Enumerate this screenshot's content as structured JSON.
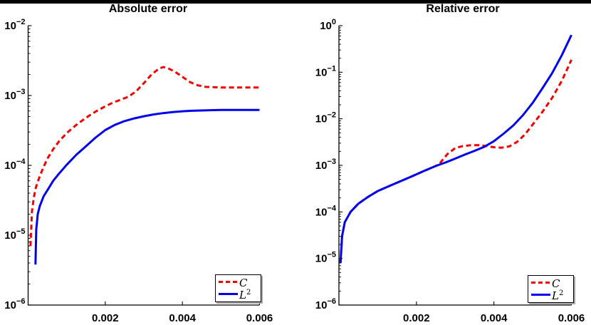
{
  "figure": {
    "background": "#ffffff",
    "top_border_color": "#000000"
  },
  "chart_data": [
    {
      "type": "line",
      "title": "Absolute error",
      "xlabel": "",
      "ylabel": "",
      "x_axis": {
        "min": 0,
        "max": 0.006,
        "tick_values": [
          0.002,
          0.004,
          0.006
        ],
        "tick_labels": [
          "0.002",
          "0.004",
          "0.006"
        ]
      },
      "y_axis": {
        "scale": "log",
        "top_exponent": -2,
        "bottom_exponent": -6,
        "tick_label_base": "10",
        "tick_exponents": [
          -2,
          -3,
          -4,
          -5,
          -6
        ]
      },
      "grid": false,
      "legend_position": "bottom-right",
      "series": [
        {
          "name": "C",
          "color": "#f20000",
          "style": "dashed",
          "x": [
            6e-05,
            0.0001,
            0.00015,
            0.0002,
            0.0003,
            0.0004,
            0.0005,
            0.00065,
            0.0008,
            0.001,
            0.00125,
            0.0015,
            0.00175,
            0.002,
            0.0022,
            0.0024,
            0.0026,
            0.0028,
            0.003,
            0.0032,
            0.0034,
            0.0035,
            0.0036,
            0.0038,
            0.004,
            0.0042,
            0.0044,
            0.0046,
            0.005,
            0.0055,
            0.006
          ],
          "y": [
            7e-06,
            2.2e-05,
            3.5e-05,
            4.8e-05,
            7e-05,
            9.5e-05,
            0.000125,
            0.00017,
            0.00022,
            0.00029,
            0.00038,
            0.00048,
            0.00059,
            0.0007,
            0.00079,
            0.00087,
            0.00096,
            0.00115,
            0.0015,
            0.002,
            0.00245,
            0.00255,
            0.0025,
            0.0022,
            0.00185,
            0.00155,
            0.0014,
            0.00133,
            0.0013,
            0.0013,
            0.0013
          ]
        },
        {
          "name": "L",
          "sup": "2",
          "color": "#0000ee",
          "style": "solid",
          "x": [
            0.00019,
            0.00021,
            0.00025,
            0.0003,
            0.0004,
            0.0005,
            0.00065,
            0.0008,
            0.001,
            0.00125,
            0.0015,
            0.00175,
            0.002,
            0.00225,
            0.0025,
            0.00275,
            0.003,
            0.00325,
            0.0035,
            0.00375,
            0.004,
            0.00425,
            0.0045,
            0.005,
            0.0055,
            0.006
          ],
          "y": [
            3.8e-06,
            1.2e-05,
            2e-05,
            2.6e-05,
            3.6e-05,
            4.4e-05,
            6e-05,
            7.6e-05,
            0.000102,
            0.000142,
            0.000188,
            0.00025,
            0.00032,
            0.00038,
            0.00043,
            0.00047,
            0.000505,
            0.000535,
            0.00056,
            0.00058,
            0.000595,
            0.000605,
            0.00061,
            0.00062,
            0.00062,
            0.00062
          ]
        }
      ]
    },
    {
      "type": "line",
      "title": "Relative error",
      "xlabel": "",
      "ylabel": "",
      "x_axis": {
        "min": 0,
        "max": 0.006,
        "tick_values": [
          0.002,
          0.004,
          0.006
        ],
        "tick_labels": [
          "0.002",
          "0.004",
          "0.006"
        ]
      },
      "y_axis": {
        "scale": "log",
        "top_exponent": 0,
        "bottom_exponent": -6,
        "tick_label_base": "10",
        "tick_exponents": [
          0,
          -1,
          -2,
          -3,
          -4,
          -5,
          -6
        ]
      },
      "grid": false,
      "legend_position": "bottom-right",
      "series": [
        {
          "name": "C",
          "color": "#f20000",
          "style": "dashed",
          "x": [
            4e-05,
            8e-05,
            0.00015,
            0.0003,
            0.0005,
            0.00075,
            0.001,
            0.0013,
            0.0016,
            0.0019,
            0.0022,
            0.0025,
            0.0026,
            0.0028,
            0.003,
            0.0032,
            0.0034,
            0.0036,
            0.0038,
            0.004,
            0.0042,
            0.0044,
            0.0046,
            0.0048,
            0.005,
            0.00525,
            0.0055,
            0.00575,
            0.006
          ],
          "y": [
            8e-06,
            3e-05,
            6e-05,
            0.0001,
            0.00015,
            0.00021,
            0.00028,
            0.00036,
            0.00046,
            0.00059,
            0.00076,
            0.00097,
            0.0011,
            0.00175,
            0.00235,
            0.0026,
            0.0027,
            0.00272,
            0.0026,
            0.00245,
            0.0024,
            0.00255,
            0.0032,
            0.0046,
            0.0075,
            0.014,
            0.028,
            0.065,
            0.185
          ]
        },
        {
          "name": "L",
          "sup": "2",
          "color": "#0000ee",
          "style": "solid",
          "x": [
            4e-05,
            8e-05,
            0.00015,
            0.0003,
            0.0005,
            0.00075,
            0.001,
            0.0013,
            0.0016,
            0.0019,
            0.0022,
            0.0025,
            0.00275,
            0.003,
            0.00325,
            0.0035,
            0.00375,
            0.004,
            0.00425,
            0.0045,
            0.00475,
            0.005,
            0.00525,
            0.0055,
            0.00575,
            0.006
          ],
          "y": [
            8e-06,
            3e-05,
            6e-05,
            0.0001,
            0.00015,
            0.00021,
            0.00028,
            0.00036,
            0.00046,
            0.00059,
            0.00076,
            0.00097,
            0.00115,
            0.0014,
            0.0017,
            0.00205,
            0.0025,
            0.0033,
            0.0048,
            0.0072,
            0.012,
            0.022,
            0.045,
            0.095,
            0.23,
            0.63
          ]
        }
      ]
    }
  ]
}
